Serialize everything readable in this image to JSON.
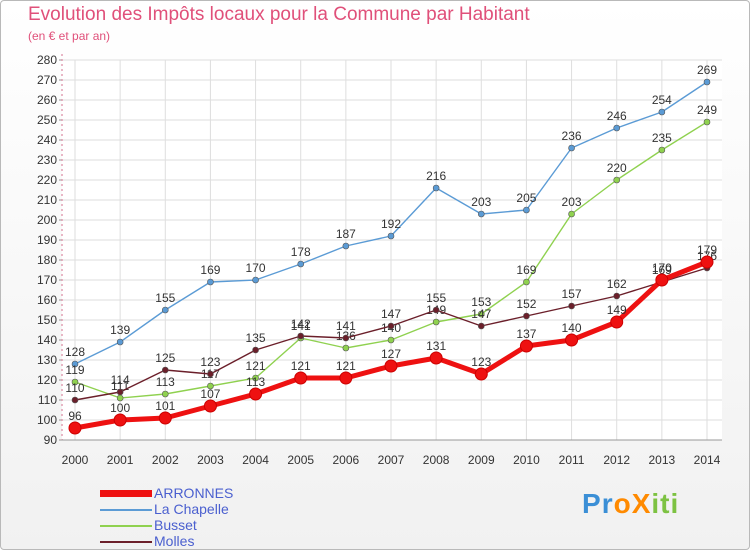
{
  "header": {
    "title": "Evolution des Impôts locaux pour la Commune par Habitant",
    "subtitle": "(en € et par an)"
  },
  "brand": {
    "text": "ProXiti",
    "colors": [
      "#3b8fd6",
      "#3b8fd6",
      "#ff8a00",
      "#ff8a00",
      "#7dc242",
      "#7dc242",
      "#7dc242"
    ]
  },
  "chart_data": {
    "type": "line",
    "title": "Evolution des Impôts locaux pour la Commune par Habitant",
    "subtitle": "(en € et par an)",
    "xlabel": "",
    "ylabel": "",
    "x": [
      "2000",
      "2001",
      "2002",
      "2003",
      "2004",
      "2005",
      "2006",
      "2007",
      "2008",
      "2009",
      "2010",
      "2011",
      "2012",
      "2013",
      "2014"
    ],
    "ylim": [
      90,
      280
    ],
    "ytick_step": 10,
    "grid": true,
    "legend_position": "bottom-left",
    "series": [
      {
        "name": "ARRONNES",
        "color": "#ee1111",
        "values": [
          96,
          100,
          101,
          107,
          113,
          121,
          121,
          127,
          131,
          123,
          137,
          140,
          149,
          170,
          179
        ],
        "labels": [
          "96",
          "100",
          "101",
          "107",
          "113",
          "121",
          "121",
          "127",
          "131",
          "123",
          "137",
          "140",
          "149",
          "170",
          "179"
        ]
      },
      {
        "name": "La Chapelle",
        "color": "#5b9bd5",
        "values": [
          128,
          139,
          155,
          169,
          170,
          178,
          187,
          192,
          216,
          203,
          205,
          236,
          246,
          254,
          269
        ],
        "labels": [
          "128",
          "139",
          "155",
          "169",
          "170",
          "178",
          "187",
          "192",
          "216",
          "203",
          "205",
          "236",
          "246",
          "254",
          "269"
        ]
      },
      {
        "name": "Busset",
        "color": "#8fd14f",
        "values": [
          119,
          111,
          113,
          117,
          121,
          141,
          136,
          140,
          149,
          153,
          169,
          203,
          220,
          235,
          249
        ],
        "labels": [
          "119",
          "111",
          "113",
          "117",
          "121",
          "141",
          "136",
          "140",
          "149",
          "153",
          "169",
          "203",
          "220",
          "235",
          "249"
        ]
      },
      {
        "name": "Molles",
        "color": "#6b1f2a",
        "values": [
          110,
          114,
          125,
          123,
          135,
          142,
          141,
          147,
          155,
          147,
          152,
          157,
          162,
          169,
          176
        ],
        "labels": [
          "110",
          "114",
          "125",
          "123",
          "135",
          "142",
          "141",
          "147",
          "155",
          "147",
          "152",
          "157",
          "162",
          "169",
          "176"
        ]
      }
    ]
  }
}
